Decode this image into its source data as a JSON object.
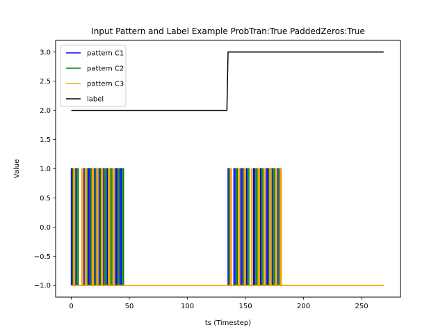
{
  "chart_data": {
    "type": "line",
    "title": "Input Pattern and Label Example ProbTran:True PaddedZeros:True",
    "xlabel": "ts (Timestep)",
    "ylabel": "Value",
    "xlim": [
      -13.5,
      283.5
    ],
    "ylim": [
      -1.2,
      3.2
    ],
    "xticks": [
      0,
      50,
      100,
      150,
      200,
      250
    ],
    "yticks": [
      -1.0,
      -0.5,
      0.0,
      0.5,
      1.0,
      1.5,
      2.0,
      2.5,
      3.0
    ],
    "ytick_labels": [
      "−1.0",
      "−0.5",
      "0.0",
      "0.5",
      "1.0",
      "1.5",
      "2.0",
      "2.5",
      "3.0"
    ],
    "grid": false,
    "legend_position": "upper-left",
    "series": [
      {
        "name": "pattern C1",
        "color": "#0000ff",
        "spikes": [
          [
            0,
            1
          ],
          [
            3,
            4
          ],
          [
            11,
            12
          ],
          [
            15,
            16
          ],
          [
            19,
            20
          ],
          [
            23,
            24
          ],
          [
            27,
            28
          ],
          [
            31,
            32
          ],
          [
            38,
            39
          ],
          [
            42,
            43
          ],
          [
            135,
            136
          ],
          [
            140,
            141
          ],
          [
            146,
            147
          ],
          [
            150,
            151
          ],
          [
            157,
            158
          ],
          [
            162,
            163
          ],
          [
            168,
            169
          ],
          [
            172,
            173
          ],
          [
            177,
            178
          ]
        ],
        "x_end": 269
      },
      {
        "name": "pattern C2",
        "color": "#008000",
        "spikes": [
          [
            1,
            2
          ],
          [
            5,
            6
          ],
          [
            13,
            14
          ],
          [
            17,
            18
          ],
          [
            21,
            22
          ],
          [
            25,
            26
          ],
          [
            29,
            30
          ],
          [
            34,
            35
          ],
          [
            40,
            41
          ],
          [
            44,
            45
          ],
          [
            136,
            137
          ],
          [
            142,
            143
          ],
          [
            148,
            149
          ],
          [
            152,
            153
          ],
          [
            159,
            160
          ],
          [
            164,
            165
          ],
          [
            170,
            171
          ],
          [
            174,
            175
          ],
          [
            179,
            180
          ]
        ],
        "x_end": 269
      },
      {
        "name": "pattern C3",
        "color": "#ffa500",
        "spikes": [
          [
            2,
            3
          ],
          [
            9,
            10
          ],
          [
            12,
            13
          ],
          [
            18,
            19
          ],
          [
            22,
            23
          ],
          [
            26,
            27
          ],
          [
            32,
            33
          ],
          [
            36,
            37
          ],
          [
            137,
            138
          ],
          [
            144,
            145
          ],
          [
            149,
            150
          ],
          [
            155,
            156
          ],
          [
            161,
            162
          ],
          [
            166,
            167
          ],
          [
            171,
            172
          ],
          [
            176,
            177
          ],
          [
            180,
            181
          ]
        ],
        "x_end": 269
      },
      {
        "name": "label",
        "color": "#000000",
        "x": [
          0,
          134,
          135,
          269
        ],
        "values": [
          2,
          2,
          3,
          3
        ]
      }
    ]
  }
}
